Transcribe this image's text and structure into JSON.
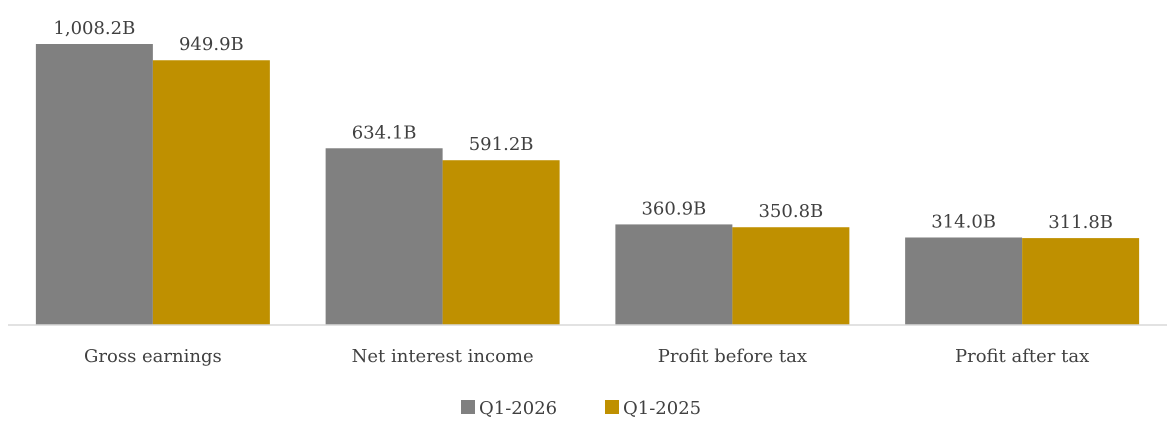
{
  "chart_data": {
    "type": "bar",
    "categories": [
      "Gross earnings",
      "Net interest income",
      "Profit before tax",
      "Profit after tax"
    ],
    "series": [
      {
        "name": "Q1-2026",
        "color": "#808080",
        "values": [
          1008.2,
          634.1,
          360.9,
          314.0
        ],
        "labels": [
          "1,008.2B",
          "634.1B",
          "360.9B",
          "314.0B"
        ]
      },
      {
        "name": "Q1-2025",
        "color": "#bf9000",
        "values": [
          949.9,
          591.2,
          350.8,
          311.8
        ],
        "labels": [
          "949.9B",
          "591.2B",
          "350.8B",
          "311.8B"
        ]
      }
    ],
    "ylim": [
      0,
      1100
    ],
    "grid": false,
    "legend_position": "bottom"
  }
}
